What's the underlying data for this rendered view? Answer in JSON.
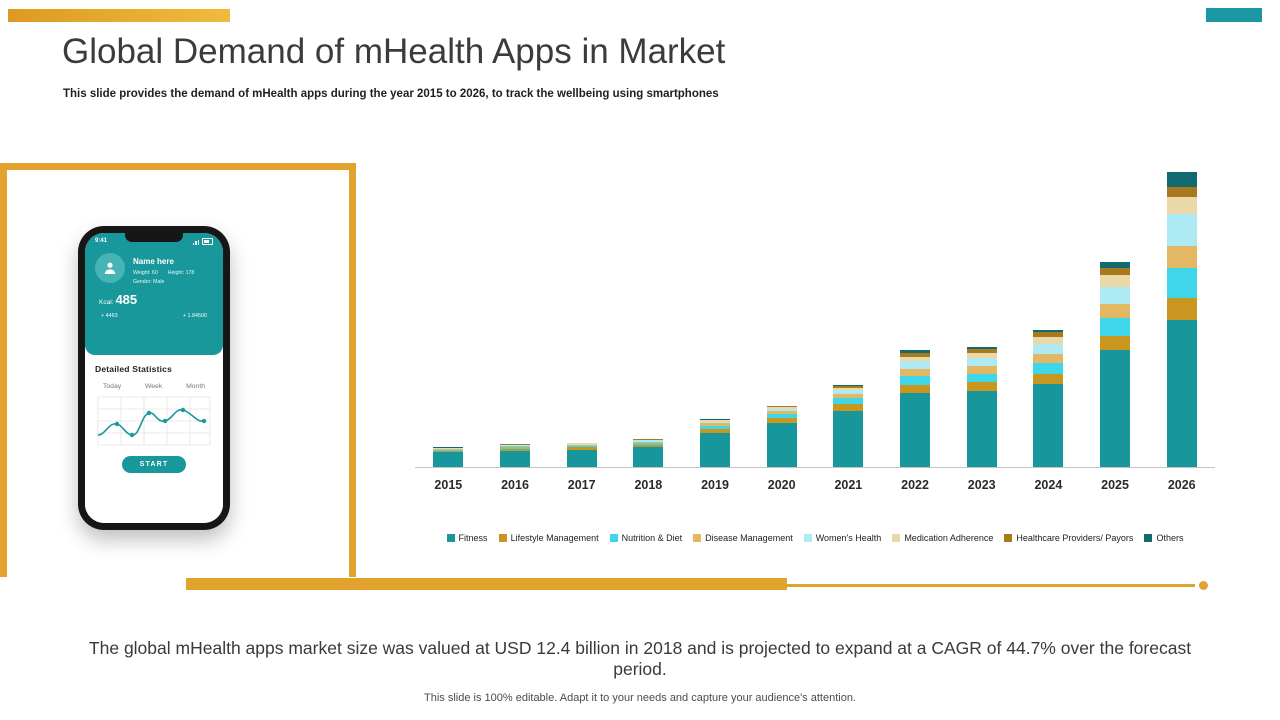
{
  "slide": {
    "title": "Global Demand of mHealth Apps in Market",
    "subtitle": "This slide provides the demand of mHealth apps during the year 2015 to 2026, to track the wellbeing using smartphones",
    "callout": "The global mHealth apps market size was valued at USD 12.4 billion in 2018 and is projected to expand at a CAGR of 44.7% over the forecast period.",
    "footer": "This slide is 100% editable. Adapt it to your needs and capture your audience's attention."
  },
  "colors": {
    "accent_orange": "#E2A32E",
    "brand_teal": "#18989B"
  },
  "phone": {
    "status_time": "9:41",
    "name": "Name here",
    "weight": "Weight: 60",
    "height": "Height: 178",
    "gender": "Gender: Male",
    "kcal_label": "Kcal:",
    "kcal_value": "485",
    "stats": [
      "+ 4463",
      "+ 1.84500"
    ],
    "section_title": "Detailed Statistics",
    "tabs": [
      "Today",
      "Week",
      "Month"
    ],
    "start_button": "START"
  },
  "chart_data": {
    "type": "bar",
    "stacked": true,
    "title": "",
    "xlabel": "",
    "ylabel": "",
    "note": "No y-axis labels shown; values estimated in relative units from bar heights",
    "ylim": [
      0,
      250
    ],
    "grid": false,
    "legend_position": "bottom",
    "categories": [
      "2015",
      "2016",
      "2017",
      "2018",
      "2019",
      "2020",
      "2021",
      "2022",
      "2023",
      "2024",
      "2025",
      "2026"
    ],
    "series": [
      {
        "name": "Fitness",
        "color": "#17969B",
        "values": [
          12,
          13,
          14,
          16,
          28,
          36,
          46,
          60,
          62,
          68,
          95,
          120
        ]
      },
      {
        "name": "Lifestyle Management",
        "color": "#C9961F",
        "values": [
          1,
          2,
          2,
          2,
          3,
          4,
          5,
          7,
          7,
          8,
          12,
          18
        ]
      },
      {
        "name": "Nutrition & Diet",
        "color": "#3ED6E8",
        "values": [
          1,
          1,
          1,
          1.5,
          2.5,
          3,
          5,
          7,
          7,
          9,
          14,
          24
        ]
      },
      {
        "name": "Disease Management",
        "color": "#E2B864",
        "values": [
          0.7,
          1,
          1,
          1.2,
          2,
          2.5,
          3.5,
          6,
          6,
          7,
          12,
          18
        ]
      },
      {
        "name": "Women's Health",
        "color": "#AEEAF3",
        "values": [
          0.5,
          0.7,
          0.8,
          1,
          1.5,
          2,
          3,
          6,
          6.5,
          8,
          14,
          26
        ]
      },
      {
        "name": "Medication Adherence",
        "color": "#EBD8A8",
        "values": [
          0.3,
          0.5,
          0.5,
          0.6,
          1,
          1.2,
          2,
          4,
          4.5,
          6,
          9,
          14
        ]
      },
      {
        "name": "Healthcare Providers/ Payors",
        "color": "#A9791D",
        "values": [
          0.3,
          0.4,
          0.4,
          0.4,
          0.6,
          0.8,
          1.5,
          3,
          3,
          4,
          6,
          8
        ]
      },
      {
        "name": "Others",
        "color": "#116A70",
        "values": [
          0.2,
          0.4,
          0.3,
          0.3,
          0.4,
          0.5,
          1,
          2,
          2,
          2,
          5,
          12
        ]
      }
    ]
  }
}
